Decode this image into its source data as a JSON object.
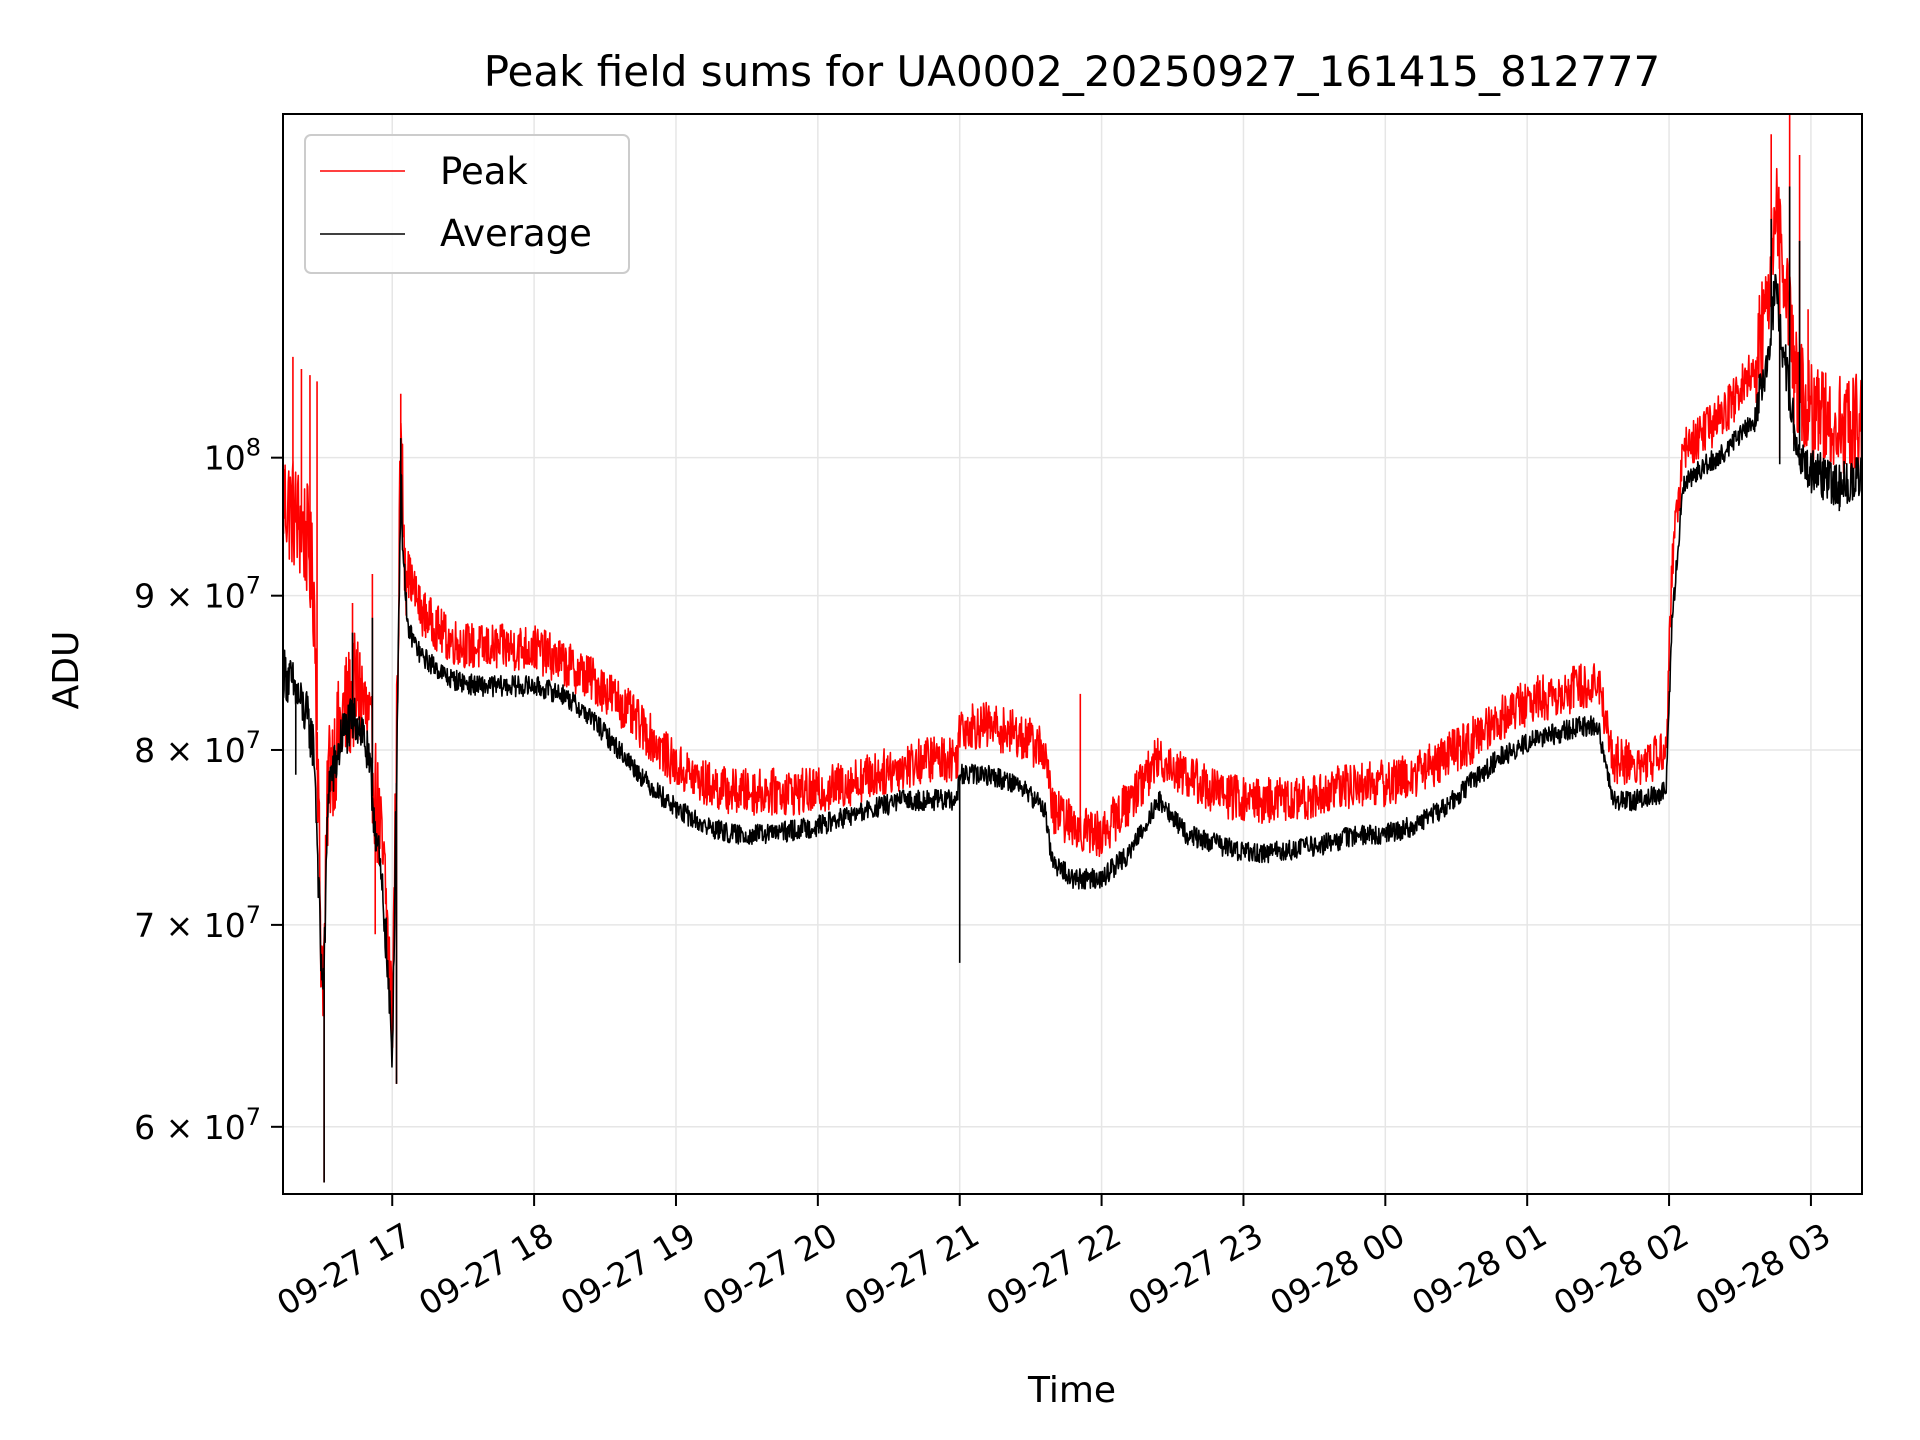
{
  "chart_data": {
    "type": "line",
    "title": "Peak field sums for UA0002_20250927_161415_812777",
    "xlabel": "Time",
    "ylabel": "ADU",
    "yscale": "log",
    "grid": true,
    "legend": {
      "placement": "top-left",
      "entries": [
        "Peak",
        "Average"
      ]
    },
    "colors": {
      "Peak": "#ff0000",
      "Average": "#000000",
      "grid": "#e6e6e6"
    },
    "xlim_hours": [
      16.23,
      27.36
    ],
    "ylim": [
      57000000,
      130000000
    ],
    "x_ticks": [
      {
        "value": 17,
        "label": "09-27 17"
      },
      {
        "value": 18,
        "label": "09-27 18"
      },
      {
        "value": 19,
        "label": "09-27 19"
      },
      {
        "value": 20,
        "label": "09-27 20"
      },
      {
        "value": 21,
        "label": "09-27 21"
      },
      {
        "value": 22,
        "label": "09-27 22"
      },
      {
        "value": 23,
        "label": "09-27 23"
      },
      {
        "value": 24,
        "label": "09-28 00"
      },
      {
        "value": 25,
        "label": "09-28 01"
      },
      {
        "value": 26,
        "label": "09-28 02"
      },
      {
        "value": 27,
        "label": "09-28 03"
      }
    ],
    "y_ticks": [
      {
        "value": 60000000,
        "mant": "6",
        "exp": "7"
      },
      {
        "value": 70000000,
        "mant": "7",
        "exp": "7"
      },
      {
        "value": 80000000,
        "mant": "8",
        "exp": "7"
      },
      {
        "value": 90000000,
        "mant": "9",
        "exp": "7"
      },
      {
        "value": 100000000,
        "mant": "",
        "exp": "8"
      }
    ],
    "series": [
      {
        "name": "Peak",
        "noise": 0.018,
        "x": [
          16.23,
          16.3,
          16.35,
          16.4,
          16.45,
          16.5,
          16.52,
          16.55,
          16.6,
          16.65,
          16.7,
          16.75,
          16.8,
          16.85,
          16.9,
          16.95,
          17.0,
          17.03,
          17.06,
          17.1,
          17.2,
          17.4,
          17.6,
          17.8,
          18.0,
          18.2,
          18.4,
          18.6,
          18.8,
          19.0,
          19.2,
          19.4,
          19.6,
          19.8,
          20.0,
          20.2,
          20.4,
          20.6,
          20.8,
          20.98,
          21.0,
          21.2,
          21.4,
          21.6,
          21.65,
          21.8,
          22.0,
          22.2,
          22.4,
          22.6,
          22.8,
          23.0,
          23.2,
          23.4,
          23.6,
          23.8,
          24.0,
          24.2,
          24.4,
          24.6,
          24.8,
          25.0,
          25.2,
          25.4,
          25.5,
          25.6,
          25.8,
          25.98,
          26.02,
          26.1,
          26.2,
          26.4,
          26.6,
          26.7,
          26.75,
          26.8,
          26.9,
          27.0,
          27.1,
          27.2,
          27.36
        ],
        "y": [
          97000000,
          96000000,
          95000000,
          94000000,
          90000000,
          68000000,
          68000000,
          79000000,
          80000000,
          82000000,
          83000000,
          84000000,
          83000000,
          80000000,
          76000000,
          72000000,
          65000000,
          80000000,
          100000000,
          92000000,
          89000000,
          87000000,
          86500000,
          86500000,
          86500000,
          85500000,
          84500000,
          83000000,
          81000000,
          79000000,
          78000000,
          77500000,
          77500000,
          77500000,
          77500000,
          78000000,
          78500000,
          79000000,
          79500000,
          79500000,
          81500000,
          81500000,
          81000000,
          80000000,
          76500000,
          75500000,
          75000000,
          77000000,
          79500000,
          78500000,
          77500000,
          77000000,
          77000000,
          77000000,
          77500000,
          78000000,
          78000000,
          78500000,
          79500000,
          80500000,
          82000000,
          83000000,
          83500000,
          84000000,
          84500000,
          79500000,
          79000000,
          80000000,
          92000000,
          100500000,
          101500000,
          103500000,
          107000000,
          113000000,
          122000000,
          117000000,
          106000000,
          104000000,
          103000000,
          102500000,
          102500000
        ],
        "spikes": [
          {
            "x": 16.3,
            "v": 108000000
          },
          {
            "x": 16.36,
            "v": 107000000
          },
          {
            "x": 16.42,
            "v": 106500000
          },
          {
            "x": 16.47,
            "v": 106000000
          },
          {
            "x": 16.72,
            "v": 89500000
          },
          {
            "x": 16.86,
            "v": 91500000
          },
          {
            "x": 17.06,
            "v": 105000000
          },
          {
            "x": 21.85,
            "v": 83500000
          },
          {
            "x": 26.72,
            "v": 128000000
          },
          {
            "x": 26.85,
            "v": 130000000
          },
          {
            "x": 26.92,
            "v": 126000000
          },
          {
            "x": 26.98,
            "v": 112000000
          }
        ],
        "dips": [
          {
            "x": 16.52,
            "v": 57500000
          },
          {
            "x": 16.88,
            "v": 69500000
          },
          {
            "x": 17.03,
            "v": 62000000
          },
          {
            "x": 26.78,
            "v": 100000000
          },
          {
            "x": 26.88,
            "v": 101000000
          }
        ]
      },
      {
        "name": "Average",
        "noise": 0.008,
        "x": [
          16.23,
          16.3,
          16.35,
          16.4,
          16.45,
          16.5,
          16.52,
          16.55,
          16.6,
          16.65,
          16.7,
          16.75,
          16.8,
          16.85,
          16.9,
          16.95,
          17.0,
          17.03,
          17.06,
          17.1,
          17.2,
          17.4,
          17.6,
          17.8,
          18.0,
          18.2,
          18.4,
          18.6,
          18.8,
          19.0,
          19.2,
          19.4,
          19.6,
          19.8,
          20.0,
          20.2,
          20.4,
          20.6,
          20.8,
          20.98,
          21.0,
          21.2,
          21.4,
          21.6,
          21.65,
          21.8,
          22.0,
          22.2,
          22.4,
          22.6,
          22.8,
          23.0,
          23.2,
          23.4,
          23.6,
          23.8,
          24.0,
          24.2,
          24.4,
          24.6,
          24.8,
          25.0,
          25.2,
          25.4,
          25.5,
          25.6,
          25.8,
          25.98,
          26.02,
          26.1,
          26.2,
          26.4,
          26.6,
          26.7,
          26.75,
          26.8,
          26.9,
          27.0,
          27.1,
          27.2,
          27.36
        ],
        "y": [
          85000000,
          84000000,
          83000000,
          82000000,
          80000000,
          67500000,
          67500000,
          78000000,
          79000000,
          81000000,
          81500000,
          82000000,
          81000000,
          78000000,
          74000000,
          70000000,
          63000000,
          78000000,
          98000000,
          88000000,
          86000000,
          84500000,
          84000000,
          84000000,
          84000000,
          83500000,
          82000000,
          80000000,
          78000000,
          76500000,
          75500000,
          75000000,
          75000000,
          75200000,
          75500000,
          76000000,
          76500000,
          77000000,
          77000000,
          77000000,
          78500000,
          78500000,
          78000000,
          76500000,
          73500000,
          72500000,
          72500000,
          74000000,
          77000000,
          75000000,
          74500000,
          74000000,
          74000000,
          74200000,
          74500000,
          75000000,
          75000000,
          75500000,
          76500000,
          78000000,
          79500000,
          80500000,
          81000000,
          81500000,
          81500000,
          77000000,
          77000000,
          77500000,
          88000000,
          98000000,
          99000000,
          100500000,
          103000000,
          108000000,
          114000000,
          109000000,
          101000000,
          99000000,
          98500000,
          98000000,
          98500000
        ],
        "spikes": [
          {
            "x": 16.72,
            "v": 87500000
          },
          {
            "x": 16.86,
            "v": 88500000
          },
          {
            "x": 17.06,
            "v": 101500000
          },
          {
            "x": 26.72,
            "v": 120000000
          },
          {
            "x": 26.85,
            "v": 123000000
          },
          {
            "x": 26.92,
            "v": 118000000
          }
        ],
        "dips": [
          {
            "x": 16.32,
            "v": 78500000
          },
          {
            "x": 16.52,
            "v": 57500000
          },
          {
            "x": 17.03,
            "v": 62000000
          },
          {
            "x": 21.0,
            "v": 68000000
          },
          {
            "x": 26.78,
            "v": 99500000
          },
          {
            "x": 26.88,
            "v": 100500000
          },
          {
            "x": 27.2,
            "v": 96000000
          }
        ]
      }
    ]
  }
}
